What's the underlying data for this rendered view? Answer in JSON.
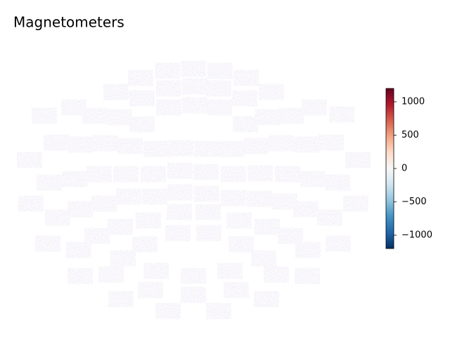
{
  "chart_data": {
    "type": "topomap-images",
    "title": "Magnetometers",
    "colorbar": {
      "ylim": [
        -1200,
        1200
      ],
      "yticks": [
        {
          "value": -1000,
          "label": "−1000"
        },
        {
          "value": -500,
          "label": "−500"
        },
        0,
        500,
        1000
      ],
      "colors": [
        "#053061",
        "#2166ac",
        "#4393c3",
        "#92c5de",
        "#d1e5f0",
        "#f7f7f7",
        "#fddbc7",
        "#f4a582",
        "#d6604d",
        "#b2182b",
        "#67001f"
      ]
    }
  }
}
